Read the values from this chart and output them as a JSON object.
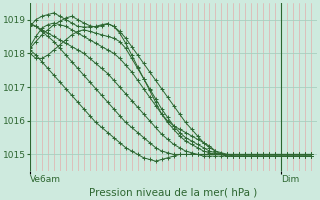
{
  "bg_color": "#ceeade",
  "grid_color_v": "#e8a0a0",
  "grid_color_h": "#a8cfc0",
  "line_color": "#2d6630",
  "xlabel": "Pression niveau de la mer( hPa )",
  "xlabel_fontsize": 7.5,
  "tick_label_fontsize": 6.5,
  "xlim": [
    0,
    48
  ],
  "ylim": [
    1014.5,
    1019.5
  ],
  "yticks": [
    1015,
    1016,
    1017,
    1018,
    1019
  ],
  "xtick_positions": [
    0,
    42
  ],
  "xtick_labels": [
    "Ve6am",
    "Dim"
  ],
  "dim_line_x": 42,
  "num_vgrid": 48,
  "series": [
    [
      1018.9,
      1018.8,
      1018.65,
      1018.5,
      1018.35,
      1018.15,
      1017.95,
      1017.75,
      1017.55,
      1017.35,
      1017.15,
      1016.95,
      1016.75,
      1016.55,
      1016.35,
      1016.15,
      1015.95,
      1015.8,
      1015.65,
      1015.5,
      1015.35,
      1015.2,
      1015.1,
      1015.05,
      1015.0,
      1015.0,
      1015.0,
      1015.0,
      1015.0,
      1015.0,
      1015.0,
      1015.0,
      1015.0,
      1015.0,
      1015.0,
      1015.0,
      1015.0,
      1015.0,
      1015.0,
      1015.0,
      1015.0,
      1015.0,
      1015.0,
      1015.0,
      1015.0,
      1015.0,
      1015.0,
      1015.0
    ],
    [
      1018.85,
      1018.8,
      1018.7,
      1018.6,
      1018.5,
      1018.4,
      1018.3,
      1018.2,
      1018.1,
      1018.0,
      1017.85,
      1017.7,
      1017.55,
      1017.4,
      1017.2,
      1017.0,
      1016.8,
      1016.6,
      1016.4,
      1016.2,
      1016.0,
      1015.8,
      1015.6,
      1015.45,
      1015.3,
      1015.2,
      1015.1,
      1015.05,
      1015.0,
      1014.95,
      1014.95,
      1014.95,
      1014.95,
      1014.95,
      1014.95,
      1014.95,
      1014.95,
      1014.95,
      1014.95,
      1014.95,
      1014.95,
      1014.95,
      1014.95,
      1014.95,
      1014.95,
      1014.95,
      1014.95,
      1014.95
    ],
    [
      1018.1,
      1017.95,
      1017.75,
      1017.55,
      1017.35,
      1017.15,
      1016.95,
      1016.75,
      1016.55,
      1016.35,
      1016.15,
      1015.95,
      1015.8,
      1015.65,
      1015.5,
      1015.35,
      1015.2,
      1015.1,
      1015.0,
      1014.9,
      1014.85,
      1014.8,
      1014.85,
      1014.9,
      1014.95,
      1015.0,
      1015.0,
      1015.0,
      1015.0,
      1015.0,
      1015.0,
      1015.0,
      1015.0,
      1015.0,
      1015.0,
      1015.0,
      1015.0,
      1015.0,
      1015.0,
      1015.0,
      1015.0,
      1015.0,
      1015.0,
      1015.0,
      1015.0,
      1015.0,
      1015.0,
      1015.0
    ],
    [
      1018.2,
      1018.5,
      1018.75,
      1018.85,
      1018.9,
      1018.85,
      1018.8,
      1018.7,
      1018.6,
      1018.5,
      1018.4,
      1018.3,
      1018.2,
      1018.1,
      1018.0,
      1017.85,
      1017.65,
      1017.45,
      1017.2,
      1016.95,
      1016.7,
      1016.45,
      1016.2,
      1015.95,
      1015.75,
      1015.55,
      1015.4,
      1015.3,
      1015.2,
      1015.1,
      1015.05,
      1015.0,
      1015.0,
      1015.0,
      1015.0,
      1015.0,
      1015.0,
      1015.0,
      1015.0,
      1015.0,
      1015.0,
      1015.0,
      1015.0,
      1015.0,
      1015.0,
      1015.0,
      1015.0,
      1015.0
    ],
    [
      1018.0,
      1017.85,
      1017.85,
      1017.95,
      1018.1,
      1018.25,
      1018.4,
      1018.55,
      1018.65,
      1018.7,
      1018.65,
      1018.6,
      1018.55,
      1018.5,
      1018.45,
      1018.35,
      1018.15,
      1017.85,
      1017.55,
      1017.25,
      1016.95,
      1016.65,
      1016.35,
      1016.1,
      1015.85,
      1015.65,
      1015.5,
      1015.4,
      1015.3,
      1015.2,
      1015.1,
      1015.05,
      1015.0,
      1014.95,
      1014.95,
      1014.95,
      1014.95,
      1014.95,
      1014.95,
      1014.95,
      1014.95,
      1014.95,
      1014.95,
      1014.95,
      1014.95,
      1014.95,
      1014.95,
      1014.95
    ],
    [
      1018.15,
      1018.35,
      1018.55,
      1018.7,
      1018.85,
      1018.95,
      1019.05,
      1019.1,
      1019.0,
      1018.9,
      1018.82,
      1018.78,
      1018.82,
      1018.88,
      1018.8,
      1018.65,
      1018.45,
      1018.2,
      1017.95,
      1017.7,
      1017.45,
      1017.2,
      1016.95,
      1016.7,
      1016.45,
      1016.2,
      1015.95,
      1015.75,
      1015.55,
      1015.35,
      1015.2,
      1015.1,
      1015.05,
      1015.0,
      1014.95,
      1014.95,
      1014.95,
      1014.95,
      1014.95,
      1014.95,
      1014.95,
      1014.95,
      1014.95,
      1014.95,
      1014.95,
      1014.95,
      1014.95,
      1014.95
    ],
    [
      1018.8,
      1019.0,
      1019.1,
      1019.15,
      1019.2,
      1019.1,
      1019.0,
      1018.9,
      1018.8,
      1018.78,
      1018.78,
      1018.8,
      1018.85,
      1018.88,
      1018.8,
      1018.6,
      1018.3,
      1017.95,
      1017.6,
      1017.25,
      1016.9,
      1016.55,
      1016.2,
      1016.0,
      1015.85,
      1015.75,
      1015.65,
      1015.55,
      1015.45,
      1015.35,
      1015.25,
      1015.1,
      1015.0,
      1014.95,
      1014.95,
      1014.95,
      1014.95,
      1014.95,
      1014.95,
      1014.95,
      1014.95,
      1014.95,
      1014.95,
      1014.95,
      1014.95,
      1014.95,
      1014.95,
      1014.95
    ]
  ]
}
